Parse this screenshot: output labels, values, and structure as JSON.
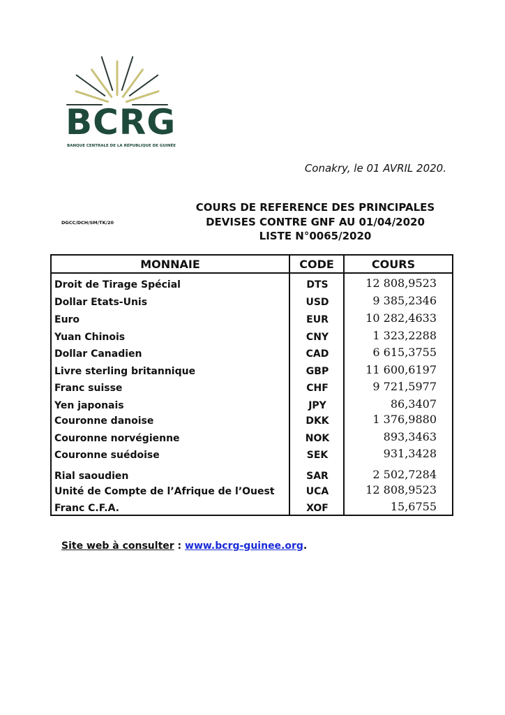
{
  "logo": {
    "text": "BCRG",
    "subtitle": "BANQUE CENTRALE DE LA RÉPUBLIQUE DE GUINÉE",
    "colors": {
      "green": "#1e4a3c",
      "gold": "#c9c27a",
      "dark": "#2b3a36"
    }
  },
  "place_date": "Conakry, le 01 AVRIL 2020.",
  "reference": "DGCC/DCH/SM/TK/20",
  "title": {
    "line1": "COURS DE REFERENCE DES PRINCIPALES",
    "line2": "DEVISES CONTRE GNF AU  01/04/2020",
    "line3": "LISTE N°0065/2020"
  },
  "table": {
    "headers": {
      "currency": "MONNAIE",
      "code": "CODE",
      "rate": "COURS"
    },
    "rows": [
      {
        "name": "Droit de Tirage Spécial",
        "code": "DTS",
        "rate": "12 808,9523"
      },
      {
        "name": "Dollar Etats-Unis",
        "code": "USD",
        "rate": "9 385,2346"
      },
      {
        "name": "Euro",
        "code": "EUR",
        "rate": "10 282,4633"
      },
      {
        "name": "Yuan Chinois",
        "code": "CNY",
        "rate": "1 323,2288"
      },
      {
        "name": "Dollar Canadien",
        "code": "CAD",
        "rate": "6 615,3755"
      },
      {
        "name": "Livre sterling britannique",
        "code": "GBP",
        "rate": "11 600,6197"
      },
      {
        "name": "Franc suisse",
        "code": "CHF",
        "rate": "9 721,5977"
      },
      {
        "name": "Yen japonais",
        "code": "JPY",
        "rate": "86,3407"
      },
      {
        "name": "Couronne danoise",
        "code": "DKK",
        "rate": "1 376,9880"
      },
      {
        "name": "Couronne norvégienne",
        "code": "NOK",
        "rate": "893,3463"
      },
      {
        "name": "Couronne suédoise",
        "code": "SEK",
        "rate": "931,3428"
      },
      {
        "name": "Rial saoudien",
        "code": "SAR",
        "rate": "2 502,7284"
      },
      {
        "name": "Unité de Compte de l’Afrique de l’Ouest",
        "code": "UCA",
        "rate": "12 808,9523"
      },
      {
        "name": "Franc C.F.A.",
        "code": "XOF",
        "rate": "15,6755"
      }
    ]
  },
  "footer": {
    "label": "Site web à consulter",
    "separator": " : ",
    "link": "www.bcrg-guinee.org",
    "end": "."
  }
}
